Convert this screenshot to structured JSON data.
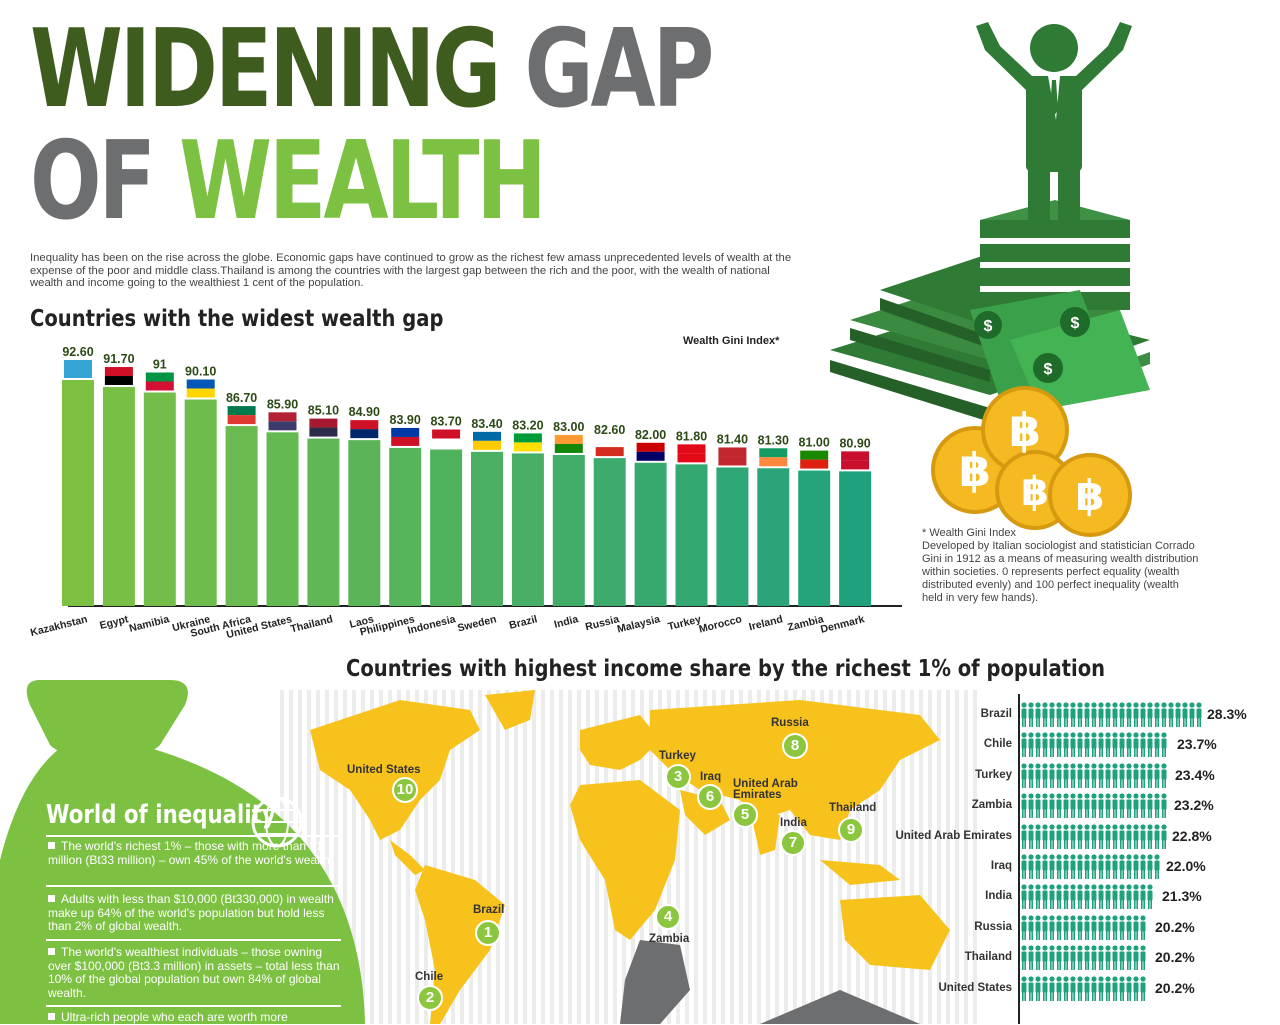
{
  "header": {
    "title_word1": "WIDENING",
    "title_word2": "GAP",
    "title_word3": "OF",
    "title_word4": "WEALTH",
    "intro": "Inequality has been on the rise across the globe. Economic gaps have continued to grow as the richest few amass unprecedented levels of wealth at the expense of the poor and middle class.Thailand is among the countries with the largest gap between the rich and the poor, with the wealth of national wealth and income going to the wealthiest 1 cent of the population."
  },
  "gini_note": {
    "title": "* Wealth Gini Index",
    "body": "Developed by Italian sociologist and statistician Corrado Gini in 1912 as a means of measuring wealth distribution within societies. 0 represents perfect equality (wealth distributed evenly) and 100 perfect inequality (wealth held in very few hands)."
  },
  "colors": {
    "dark_green": "#3e5c1e",
    "lime": "#7dc142",
    "teal": "#20a17e",
    "gold": "#f5b921",
    "map_gold": "#f7c21b",
    "gray": "#6d6e70",
    "money_green": "#2f7a35"
  },
  "chart_data": [
    {
      "type": "bar",
      "title": "Countries with the widest wealth gap",
      "legend": "Wealth Gini Index*",
      "categories": [
        "Kazakhstan",
        "Egypt",
        "Namibia",
        "Ukraine",
        "South Africa",
        "United States",
        "Thailand",
        "Laos",
        "Philippines",
        "Indonesia",
        "Sweden",
        "Brazil",
        "India",
        "Russia",
        "Malaysia",
        "Turkey",
        "Morocco",
        "Ireland",
        "Zambia",
        "Denmark"
      ],
      "values": [
        92.6,
        91.7,
        91,
        90.1,
        86.7,
        85.9,
        85.1,
        84.9,
        83.9,
        83.7,
        83.4,
        83.2,
        83.0,
        82.6,
        82.0,
        81.8,
        81.4,
        81.3,
        81.0,
        80.9
      ],
      "value_labels": [
        "92.60",
        "91.70",
        "91",
        "90.10",
        "86.70",
        "85.90",
        "85.10",
        "84.90",
        "83.90",
        "83.70",
        "83.40",
        "83.20",
        "83.00",
        "82.60",
        "82.00",
        "81.80",
        "81.40",
        "81.30",
        "81.00",
        "80.90"
      ],
      "ylim": [
        0,
        100
      ],
      "grid": false
    },
    {
      "type": "bar",
      "title": "Countries with highest income share by the richest 1% of population",
      "categories": [
        "Brazil",
        "Chile",
        "Turkey",
        "Zambia",
        "United Arab Emirates",
        "Iraq",
        "India",
        "Russia",
        "Thailand",
        "United States"
      ],
      "values": [
        28.3,
        23.7,
        23.4,
        23.2,
        22.8,
        22.0,
        21.3,
        20.2,
        20.2,
        20.2
      ],
      "value_labels": [
        "28.3%",
        "23.7%",
        "23.4%",
        "23.2%",
        "22.8%",
        "22.0%",
        "21.3%",
        "20.2%",
        "20.2%",
        "20.2%"
      ],
      "orientation": "horizontal",
      "xlim": [
        0,
        28.3
      ]
    }
  ],
  "map": {
    "markers": [
      {
        "rank": "1",
        "name": "Brazil"
      },
      {
        "rank": "2",
        "name": "Chile"
      },
      {
        "rank": "3",
        "name": "Turkey"
      },
      {
        "rank": "4",
        "name": "Zambia"
      },
      {
        "rank": "5",
        "name": "United Arab Emirates"
      },
      {
        "rank": "6",
        "name": "Iraq"
      },
      {
        "rank": "7",
        "name": "India"
      },
      {
        "rank": "8",
        "name": "Russia"
      },
      {
        "rank": "9",
        "name": "Thailand"
      },
      {
        "rank": "10",
        "name": "United States"
      }
    ]
  },
  "inequality_box": {
    "title": "World of inequality",
    "facts": [
      "The world's richest 1% – those with more than $1 million (Bt33 million) – own 45% of the world's wealth.",
      "Adults with less than $10,000 (Bt330,000) in wealth make up 64% of the world's population but hold less than 2% of global wealth.",
      "The world's wealthiest individuals – those owning over $100,000 (Bt3.3 million) in assets – total less than 10% of the global population but own 84% of global wealth.",
      "Ultra-rich people who each are worth more"
    ]
  },
  "icons": {
    "hero": "businessman-arms-raised-icon",
    "money": "dollar-banknote-icon",
    "coin": "baht-coin-icon",
    "bag": "money-bag-icon",
    "globe": "globe-network-icon",
    "person": "person-icon"
  }
}
